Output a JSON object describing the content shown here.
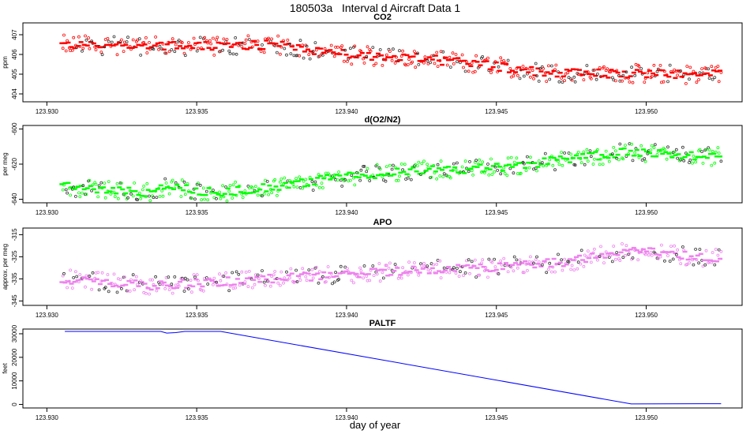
{
  "figure": {
    "title": "180503a   Interval d Aircraft Data 1",
    "xlabel": "day of year"
  },
  "chart_data": [
    {
      "type": "scatter",
      "title": "CO2",
      "ylabel": "ppm",
      "x_ticks": [
        "123.930",
        "123.935",
        "123.940",
        "123.945",
        "123.950"
      ],
      "y_ticks": [
        404,
        405,
        406,
        407
      ],
      "xlim": [
        123.9292,
        123.9532
      ],
      "ylim": [
        403.6,
        407.6
      ],
      "series": [
        {
          "color": "#ff0000",
          "x_range": [
            123.9305,
            123.9525
          ],
          "trend": [
            [
              123.9305,
              406.5
            ],
            [
              123.935,
              406.4
            ],
            [
              123.9375,
              406.5
            ],
            [
              123.94,
              406.0
            ],
            [
              123.9425,
              405.8
            ],
            [
              123.945,
              405.4
            ],
            [
              123.9465,
              405.1
            ],
            [
              123.95,
              405.0
            ],
            [
              123.9525,
              405.0
            ]
          ]
        }
      ]
    },
    {
      "type": "scatter",
      "title": "d(O2/N2)",
      "ylabel": "per meg",
      "x_ticks": [
        "123.930",
        "123.935",
        "123.940",
        "123.945",
        "123.950"
      ],
      "y_ticks": [
        -640,
        -620,
        -600
      ],
      "xlim": [
        123.9292,
        123.9532
      ],
      "ylim": [
        -642,
        -598
      ],
      "series": [
        {
          "color": "#00ff00",
          "x_range": [
            123.9305,
            123.9525
          ],
          "trend": [
            [
              123.9305,
              -631
            ],
            [
              123.931,
              -634
            ],
            [
              123.9335,
              -636
            ],
            [
              123.934,
              -632
            ],
            [
              123.935,
              -635
            ],
            [
              123.936,
              -636
            ],
            [
              123.9375,
              -633
            ],
            [
              123.94,
              -627
            ],
            [
              123.942,
              -624
            ],
            [
              123.945,
              -622
            ],
            [
              123.9475,
              -617
            ],
            [
              123.9495,
              -613
            ],
            [
              123.9525,
              -616
            ]
          ]
        }
      ]
    },
    {
      "type": "scatter",
      "title": "APO",
      "ylabel": "approx. per meg",
      "x_ticks": [
        "123.930",
        "123.935",
        "123.940",
        "123.945",
        "123.950"
      ],
      "y_ticks": [
        -345,
        -335,
        -325,
        -315
      ],
      "xlim": [
        123.9292,
        123.9532
      ],
      "ylim": [
        -347,
        -312
      ],
      "series": [
        {
          "color": "#ee82ee",
          "x_range": [
            123.9305,
            123.9525
          ],
          "trend": [
            [
              123.9305,
              -335
            ],
            [
              123.9335,
              -338
            ],
            [
              123.935,
              -337
            ],
            [
              123.9375,
              -335
            ],
            [
              123.94,
              -333
            ],
            [
              123.9425,
              -331
            ],
            [
              123.945,
              -330
            ],
            [
              123.9475,
              -327
            ],
            [
              123.9495,
              -322
            ],
            [
              123.9525,
              -326
            ]
          ]
        }
      ]
    },
    {
      "type": "line",
      "title": "PALTF",
      "ylabel": "feet",
      "x_ticks": [
        "123.930",
        "123.935",
        "123.940",
        "123.945",
        "123.950"
      ],
      "y_ticks": [
        0,
        10000,
        20000,
        30000
      ],
      "xlim": [
        123.9292,
        123.9532
      ],
      "ylim": [
        -1500,
        32000
      ],
      "series": [
        {
          "color": "#0000ff",
          "points": [
            [
              123.9306,
              31000
            ],
            [
              123.9338,
              31000
            ],
            [
              123.934,
              30300
            ],
            [
              123.9343,
              30500
            ],
            [
              123.9346,
              31000
            ],
            [
              123.9358,
              31000
            ],
            [
              123.9495,
              200
            ],
            [
              123.9525,
              300
            ]
          ]
        }
      ]
    }
  ]
}
